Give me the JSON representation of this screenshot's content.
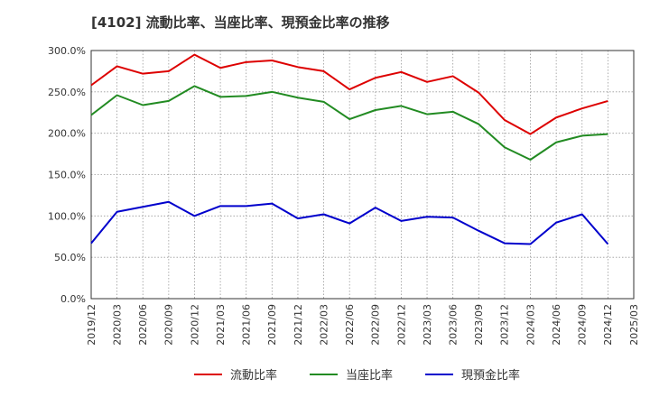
{
  "chart_data": {
    "type": "line",
    "title": "[4102]  流動比率、当座比率、現預金比率の推移",
    "xlabel": "",
    "ylabel": "",
    "ylim": [
      0,
      300
    ],
    "y_ticks": [
      "0.0%",
      "50.0%",
      "100.0%",
      "150.0%",
      "200.0%",
      "250.0%",
      "300.0%"
    ],
    "x_ticks": [
      "2019/12",
      "2020/03",
      "2020/06",
      "2020/09",
      "2020/12",
      "2021/03",
      "2021/06",
      "2021/09",
      "2021/12",
      "2022/03",
      "2022/06",
      "2022/09",
      "2022/12",
      "2023/03",
      "2023/06",
      "2023/09",
      "2023/12",
      "2024/03",
      "2024/06",
      "2024/09",
      "2024/12",
      "2025/03"
    ],
    "categories": [
      "2019/12",
      "2020/03",
      "2020/06",
      "2020/09",
      "2020/12",
      "2021/03",
      "2021/06",
      "2021/09",
      "2021/12",
      "2022/03",
      "2022/06",
      "2022/09",
      "2022/12",
      "2023/03",
      "2023/06",
      "2023/09",
      "2023/12",
      "2024/03",
      "2024/06",
      "2024/09",
      "2024/12"
    ],
    "series": [
      {
        "name": "流動比率",
        "color": "#dd0000",
        "values": [
          258,
          281,
          272,
          275,
          295,
          279,
          286,
          288,
          280,
          275,
          253,
          267,
          274,
          262,
          269,
          249,
          216,
          199,
          219,
          230,
          239
        ]
      },
      {
        "name": "当座比率",
        "color": "#228b22",
        "values": [
          222,
          246,
          234,
          239,
          257,
          244,
          245,
          250,
          243,
          238,
          217,
          228,
          233,
          223,
          226,
          211,
          183,
          168,
          189,
          197,
          199
        ]
      },
      {
        "name": "現預金比率",
        "color": "#0000cc",
        "values": [
          67,
          105,
          111,
          117,
          100,
          112,
          112,
          115,
          97,
          102,
          91,
          110,
          94,
          99,
          98,
          82,
          67,
          66,
          92,
          102,
          66
        ]
      }
    ],
    "grid": true,
    "legend_position": "bottom"
  }
}
